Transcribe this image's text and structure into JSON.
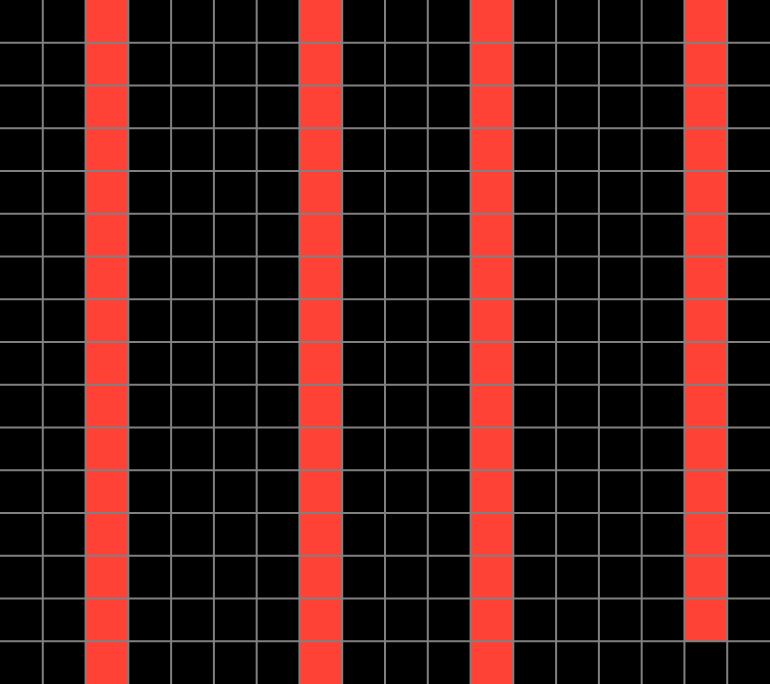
{
  "grid": {
    "rows": 16,
    "columns": 18,
    "colors": {
      "0": "#000000",
      "1": "#ff4136"
    },
    "line_color": "#808080",
    "cells": [
      [
        0,
        0,
        1,
        0,
        0,
        0,
        0,
        1,
        0,
        0,
        0,
        1,
        0,
        0,
        0,
        0,
        1,
        0
      ],
      [
        0,
        0,
        1,
        0,
        0,
        0,
        0,
        1,
        0,
        0,
        0,
        1,
        0,
        0,
        0,
        0,
        1,
        0
      ],
      [
        0,
        0,
        1,
        0,
        0,
        0,
        0,
        1,
        0,
        0,
        0,
        1,
        0,
        0,
        0,
        0,
        1,
        0
      ],
      [
        0,
        0,
        1,
        0,
        0,
        0,
        0,
        1,
        0,
        0,
        0,
        1,
        0,
        0,
        0,
        0,
        1,
        0
      ],
      [
        0,
        0,
        1,
        0,
        0,
        0,
        0,
        1,
        0,
        0,
        0,
        1,
        0,
        0,
        0,
        0,
        1,
        0
      ],
      [
        0,
        0,
        1,
        0,
        0,
        0,
        0,
        1,
        0,
        0,
        0,
        1,
        0,
        0,
        0,
        0,
        1,
        0
      ],
      [
        0,
        0,
        1,
        0,
        0,
        0,
        0,
        1,
        0,
        0,
        0,
        1,
        0,
        0,
        0,
        0,
        1,
        0
      ],
      [
        0,
        0,
        1,
        0,
        0,
        0,
        0,
        1,
        0,
        0,
        0,
        1,
        0,
        0,
        0,
        0,
        1,
        0
      ],
      [
        0,
        0,
        1,
        0,
        0,
        0,
        0,
        1,
        0,
        0,
        0,
        1,
        0,
        0,
        0,
        0,
        1,
        0
      ],
      [
        0,
        0,
        1,
        0,
        0,
        0,
        0,
        1,
        0,
        0,
        0,
        1,
        0,
        0,
        0,
        0,
        1,
        0
      ],
      [
        0,
        0,
        1,
        0,
        0,
        0,
        0,
        1,
        0,
        0,
        0,
        1,
        0,
        0,
        0,
        0,
        1,
        0
      ],
      [
        0,
        0,
        1,
        0,
        0,
        0,
        0,
        1,
        0,
        0,
        0,
        1,
        0,
        0,
        0,
        0,
        1,
        0
      ],
      [
        0,
        0,
        1,
        0,
        0,
        0,
        0,
        1,
        0,
        0,
        0,
        1,
        0,
        0,
        0,
        0,
        1,
        0
      ],
      [
        0,
        0,
        1,
        0,
        0,
        0,
        0,
        1,
        0,
        0,
        0,
        1,
        0,
        0,
        0,
        0,
        1,
        0
      ],
      [
        0,
        0,
        1,
        0,
        0,
        0,
        0,
        1,
        0,
        0,
        0,
        1,
        0,
        0,
        0,
        0,
        1,
        0
      ],
      [
        0,
        0,
        1,
        0,
        0,
        0,
        0,
        1,
        0,
        0,
        0,
        1,
        0,
        0,
        0,
        0,
        0,
        0
      ]
    ]
  }
}
